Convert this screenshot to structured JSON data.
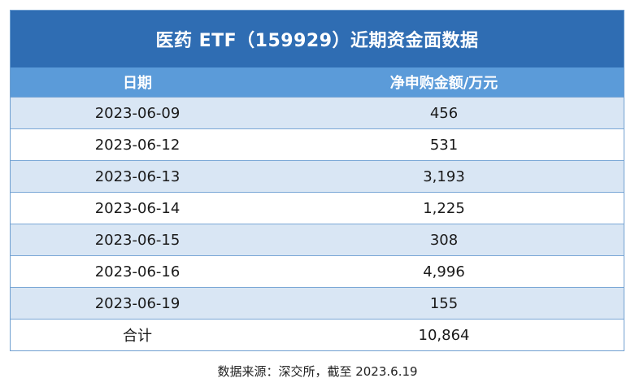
{
  "title": "医药 ETF（159929）近期资金面数据",
  "columns": [
    "日期",
    "净申购金额/万元"
  ],
  "rows": [
    {
      "date": "2023-06-09",
      "value": "456"
    },
    {
      "date": "2023-06-12",
      "value": "531"
    },
    {
      "date": "2023-06-13",
      "value": "3,193"
    },
    {
      "date": "2023-06-14",
      "value": "1,225"
    },
    {
      "date": "2023-06-15",
      "value": "308"
    },
    {
      "date": "2023-06-16",
      "value": "4,996"
    },
    {
      "date": "2023-06-19",
      "value": "155"
    }
  ],
  "total": {
    "label": "合计",
    "value": "10,864"
  },
  "source": "数据来源：深交所，截至 2023.6.19",
  "colors": {
    "title_bg": "#2f6db3",
    "header_bg": "#5b9bd9",
    "stripe_bg": "#d9e6f4"
  }
}
